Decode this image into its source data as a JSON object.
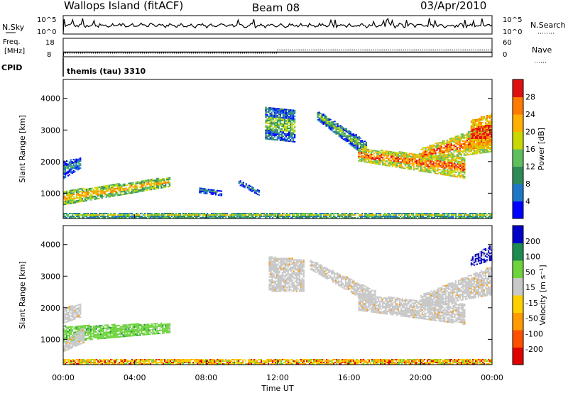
{
  "header": {
    "station": "Wallops Island (fitACF)",
    "beam": "Beam 08",
    "date": "03/Apr/2010"
  },
  "noise_panel": {
    "left_label": "N.Sky",
    "right_label": "N.Search",
    "left_ticks": [
      "10^5",
      "10^0"
    ],
    "right_ticks": [
      "10^5",
      "10^0"
    ]
  },
  "freq_panel": {
    "label_freq": "Freq.",
    "label_unit": "[MHz]",
    "right_label": "Nave",
    "left_ticks": [
      "18",
      "8"
    ],
    "right_ticks": [
      "60",
      "0"
    ],
    "freq_MHz": 10.5,
    "nave_before_1200": 12,
    "nave_after_1200": 22,
    "nave_change_hour": 12.0
  },
  "cpid_panel": {
    "label": "CPID",
    "program": "themis (tau) 3310"
  },
  "colors": {
    "power": [
      "#0000ff",
      "#1e78c8",
      "#2e8b57",
      "#5fbf5f",
      "#c8d800",
      "#ffb000",
      "#ff7a00",
      "#e01010"
    ],
    "velocity_pos": [
      "#0000c8",
      "#1e8c50",
      "#6ed43c"
    ],
    "velocity_gray": "#c8c8c8",
    "velocity_neg": [
      "#ffd000",
      "#ff9a00",
      "#ff5000",
      "#e00000"
    ],
    "trace": "#000000"
  },
  "chart_data": [
    {
      "type": "heatmap",
      "name": "power",
      "ylabel": "Slant Range [km]",
      "colorbar_label": "Power [dB]",
      "colorbar_ticks": [
        "28",
        "24",
        "20",
        "16",
        "12",
        "8",
        "4"
      ],
      "y_ticks": [
        "4000",
        "3000",
        "2000",
        "1000"
      ],
      "ylim": [
        200,
        4600
      ],
      "xlim_hours": [
        0,
        24
      ],
      "regions": [
        {
          "t0": 0.0,
          "t1": 6.0,
          "r_low_start": 620,
          "r_low_end": 1200,
          "r_high_start": 1050,
          "r_high_end": 1500,
          "level": 4
        },
        {
          "t0": 0.0,
          "t1": 1.0,
          "r_low_start": 1450,
          "r_low_end": 1800,
          "r_high_start": 2000,
          "r_high_end": 2100,
          "level": 1
        },
        {
          "t0": 7.6,
          "t1": 8.9,
          "r_low_start": 1000,
          "r_low_end": 900,
          "r_high_start": 1150,
          "r_high_end": 1050,
          "level": 1
        },
        {
          "t0": 9.8,
          "t1": 11.0,
          "r_low_start": 1250,
          "r_low_end": 900,
          "r_high_start": 1400,
          "r_high_end": 1050,
          "level": 1
        },
        {
          "t0": 11.3,
          "t1": 13.0,
          "r_low_start": 2700,
          "r_low_end": 2600,
          "r_high_start": 3700,
          "r_high_end": 3600,
          "level": 2
        },
        {
          "t0": 14.2,
          "t1": 17.0,
          "r_low_start": 3300,
          "r_low_end": 2100,
          "r_high_start": 3600,
          "r_high_end": 2600,
          "level": 2
        },
        {
          "t0": 16.5,
          "t1": 22.5,
          "r_low_start": 2000,
          "r_low_end": 1450,
          "r_high_start": 2400,
          "r_high_end": 2100,
          "level": 5
        },
        {
          "t0": 20.0,
          "t1": 24.0,
          "r_low_start": 2000,
          "r_low_end": 2300,
          "r_high_start": 2400,
          "r_high_end": 3200,
          "level": 5
        },
        {
          "t0": 22.8,
          "t1": 24.0,
          "r_low_start": 2400,
          "r_low_end": 2400,
          "r_high_start": 3300,
          "r_high_end": 3500,
          "level": 6
        },
        {
          "t0": 0.0,
          "t1": 24.0,
          "r_low_start": 200,
          "r_low_end": 200,
          "r_high_start": 380,
          "r_high_end": 380,
          "level": 3
        }
      ]
    },
    {
      "type": "heatmap",
      "name": "velocity",
      "ylabel": "Slant Range [km]",
      "colorbar_label": "Velocity [m s⁻¹]",
      "colorbar_ticks": [
        "200",
        "100",
        "50",
        "15",
        "-15",
        "-50",
        "-100",
        "-200"
      ],
      "y_ticks": [
        "4000",
        "3000",
        "2000",
        "1000"
      ],
      "ylim": [
        200,
        4600
      ],
      "xlim_hours": [
        0,
        24
      ],
      "x_ticks": [
        "00:00",
        "04:00",
        "08:00",
        "12:00",
        "16:00",
        "20:00",
        "00:00"
      ],
      "xlabel": "Time UT",
      "regions": [
        {
          "t0": 0.0,
          "t1": 6.0,
          "r_low_start": 900,
          "r_low_end": 1200,
          "r_high_start": 1400,
          "r_high_end": 1500,
          "cls": "green"
        },
        {
          "t0": 0.0,
          "t1": 1.2,
          "r_low_start": 600,
          "r_low_end": 900,
          "r_high_start": 900,
          "r_high_end": 1400,
          "cls": "gray"
        },
        {
          "t0": 0.0,
          "t1": 1.0,
          "r_low_start": 1500,
          "r_low_end": 1700,
          "r_high_start": 2000,
          "r_high_end": 2100,
          "cls": "gray"
        },
        {
          "t0": 11.5,
          "t1": 13.5,
          "r_low_start": 2500,
          "r_low_end": 2500,
          "r_high_start": 3600,
          "r_high_end": 3500,
          "cls": "gray"
        },
        {
          "t0": 13.8,
          "t1": 17.5,
          "r_low_start": 3200,
          "r_low_end": 2000,
          "r_high_start": 3500,
          "r_high_end": 2500,
          "cls": "gray"
        },
        {
          "t0": 16.5,
          "t1": 22.5,
          "r_low_start": 1900,
          "r_low_end": 1450,
          "r_high_start": 2400,
          "r_high_end": 2100,
          "cls": "gray"
        },
        {
          "t0": 20.0,
          "t1": 24.0,
          "r_low_start": 2000,
          "r_low_end": 2400,
          "r_high_start": 2400,
          "r_high_end": 3300,
          "cls": "gray"
        },
        {
          "t0": 22.8,
          "t1": 24.0,
          "r_low_start": 3300,
          "r_low_end": 3500,
          "r_high_start": 3600,
          "r_high_end": 4000,
          "cls": "blue"
        },
        {
          "t0": 0.0,
          "t1": 24.0,
          "r_low_start": 200,
          "r_low_end": 200,
          "r_high_start": 380,
          "r_high_end": 380,
          "cls": "orange"
        }
      ]
    }
  ]
}
